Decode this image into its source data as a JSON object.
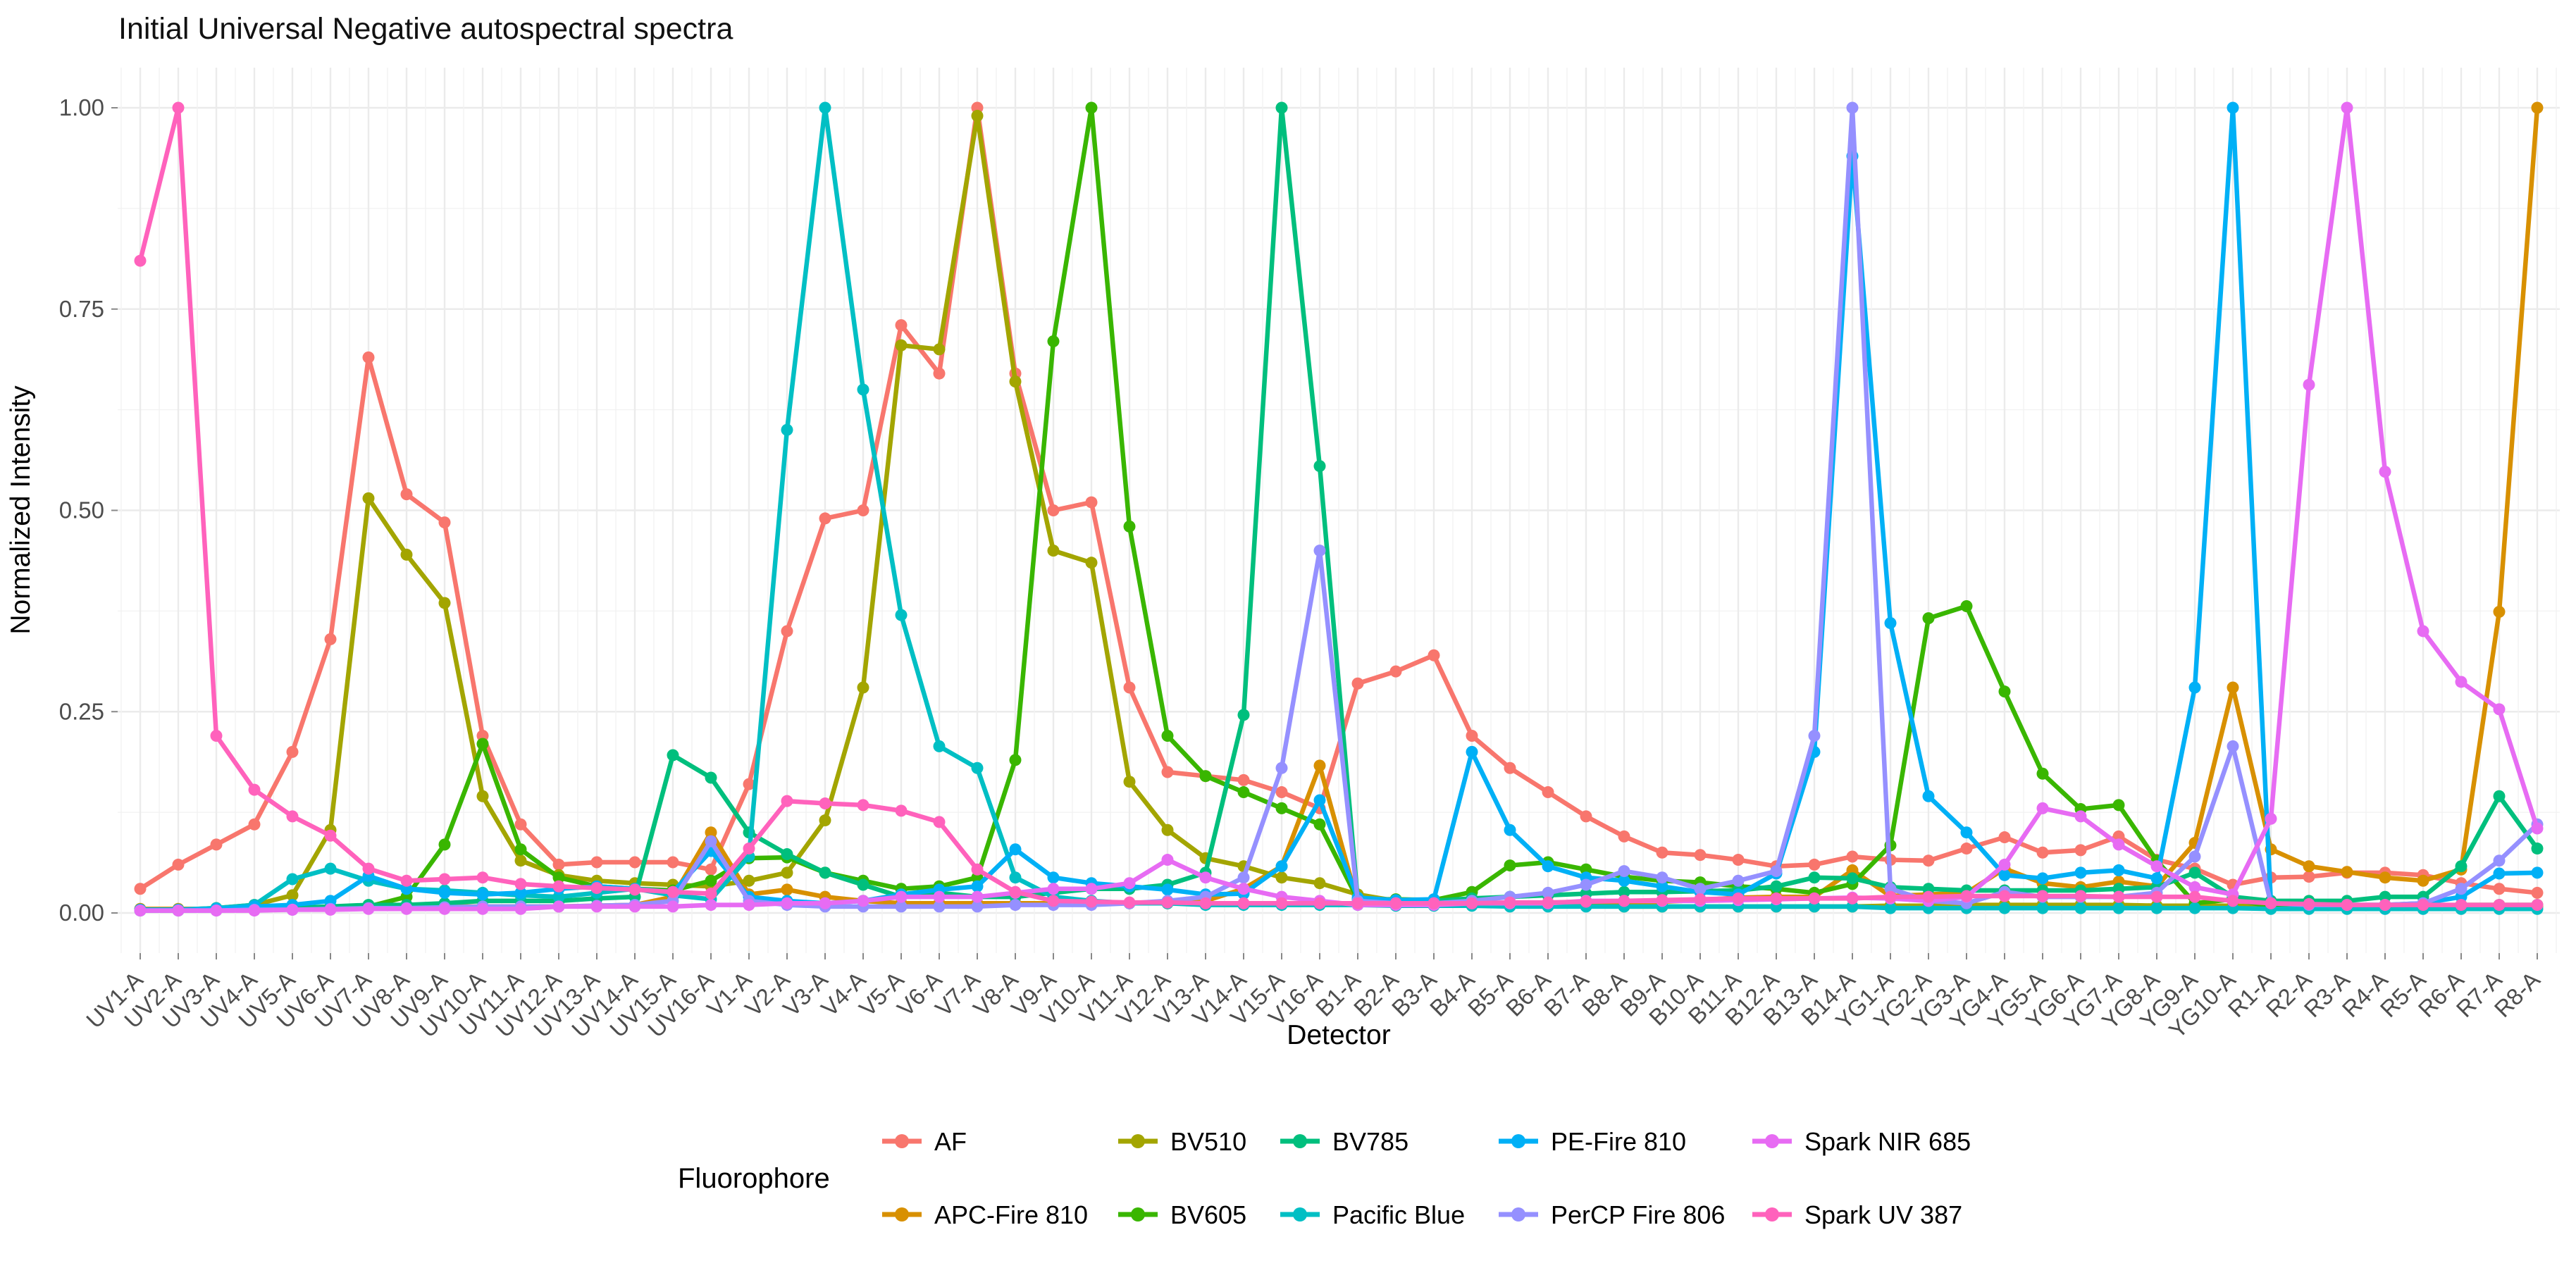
{
  "title": "Initial Universal Negative autospectral spectra",
  "y_axis": {
    "label": "Normalized Intensity",
    "ticks": [
      0,
      0.25,
      0.5,
      0.75,
      1.0
    ]
  },
  "x_axis": {
    "label": "Detector"
  },
  "legend": {
    "title": "Fluorophore",
    "rows": [
      [
        "AF",
        "BV510",
        "BV785",
        "PE-Fire 810",
        "Spark NIR 685"
      ],
      [
        "APC-Fire 810",
        "BV605",
        "Pacific Blue",
        "PerCP Fire 806",
        "Spark UV 387"
      ]
    ]
  },
  "chart_data": {
    "type": "line",
    "title": "Initial Universal Negative autospectral spectra",
    "xlabel": "Detector",
    "ylabel": "Normalized Intensity",
    "ylim": [
      0,
      1
    ],
    "grid": true,
    "legend_position": "bottom",
    "categories": [
      "UV1-A",
      "UV2-A",
      "UV3-A",
      "UV4-A",
      "UV5-A",
      "UV6-A",
      "UV7-A",
      "UV8-A",
      "UV9-A",
      "UV10-A",
      "UV11-A",
      "UV12-A",
      "UV13-A",
      "UV14-A",
      "UV15-A",
      "UV16-A",
      "V1-A",
      "V2-A",
      "V3-A",
      "V4-A",
      "V5-A",
      "V6-A",
      "V7-A",
      "V8-A",
      "V9-A",
      "V10-A",
      "V11-A",
      "V12-A",
      "V13-A",
      "V14-A",
      "V15-A",
      "V16-A",
      "B1-A",
      "B2-A",
      "B3-A",
      "B4-A",
      "B5-A",
      "B6-A",
      "B7-A",
      "B8-A",
      "B9-A",
      "B10-A",
      "B11-A",
      "B12-A",
      "B13-A",
      "B14-A",
      "YG1-A",
      "YG2-A",
      "YG3-A",
      "YG4-A",
      "YG5-A",
      "YG6-A",
      "YG7-A",
      "YG8-A",
      "YG9-A",
      "YG10-A",
      "R1-A",
      "R2-A",
      "R3-A",
      "R4-A",
      "R5-A",
      "R6-A",
      "R7-A",
      "R8-A"
    ],
    "series": [
      {
        "name": "AF",
        "color": "#F8766D",
        "values": [
          0.03,
          0.06,
          0.085,
          0.11,
          0.2,
          0.34,
          0.69,
          0.52,
          0.485,
          0.22,
          0.11,
          0.06,
          0.063,
          0.063,
          0.063,
          0.054,
          0.16,
          0.35,
          0.49,
          0.5,
          0.73,
          0.67,
          1.0,
          0.67,
          0.5,
          0.51,
          0.28,
          0.175,
          0.17,
          0.165,
          0.15,
          0.13,
          0.285,
          0.3,
          0.32,
          0.22,
          0.18,
          0.15,
          0.12,
          0.095,
          0.075,
          0.072,
          0.066,
          0.058,
          0.06,
          0.07,
          0.066,
          0.065,
          0.08,
          0.094,
          0.075,
          0.078,
          0.095,
          0.066,
          0.055,
          0.035,
          0.044,
          0.045,
          0.05,
          0.05,
          0.047,
          0.037,
          0.03,
          0.025
        ]
      },
      {
        "name": "APC-Fire 810",
        "color": "#D89000",
        "values": [
          0.005,
          0.005,
          0.005,
          0.005,
          0.006,
          0.006,
          0.007,
          0.007,
          0.008,
          0.008,
          0.008,
          0.008,
          0.009,
          0.01,
          0.02,
          0.1,
          0.023,
          0.029,
          0.02,
          0.015,
          0.012,
          0.012,
          0.012,
          0.012,
          0.012,
          0.012,
          0.012,
          0.012,
          0.015,
          0.03,
          0.058,
          0.183,
          0.012,
          0.01,
          0.01,
          0.01,
          0.01,
          0.01,
          0.012,
          0.012,
          0.014,
          0.016,
          0.019,
          0.02,
          0.02,
          0.053,
          0.021,
          0.023,
          0.025,
          0.055,
          0.037,
          0.032,
          0.039,
          0.033,
          0.087,
          0.28,
          0.079,
          0.058,
          0.051,
          0.044,
          0.04,
          0.054,
          0.374,
          1.0
        ]
      },
      {
        "name": "BV510",
        "color": "#A3A500",
        "values": [
          0.004,
          0.004,
          0.006,
          0.01,
          0.022,
          0.103,
          0.515,
          0.445,
          0.385,
          0.145,
          0.065,
          0.047,
          0.04,
          0.037,
          0.035,
          0.033,
          0.04,
          0.05,
          0.115,
          0.28,
          0.705,
          0.7,
          0.99,
          0.66,
          0.45,
          0.435,
          0.163,
          0.103,
          0.068,
          0.058,
          0.044,
          0.037,
          0.023,
          0.015,
          0.012,
          0.01,
          0.01,
          0.009,
          0.009,
          0.008,
          0.008,
          0.008,
          0.008,
          0.008,
          0.008,
          0.008,
          0.009,
          0.009,
          0.01,
          0.01,
          0.01,
          0.01,
          0.01,
          0.009,
          0.009,
          0.009,
          0.008,
          0.008,
          0.008,
          0.008,
          0.008,
          0.008,
          0.008,
          0.008
        ]
      },
      {
        "name": "BV605",
        "color": "#39B600",
        "values": [
          0.004,
          0.004,
          0.004,
          0.005,
          0.005,
          0.006,
          0.008,
          0.02,
          0.085,
          0.21,
          0.079,
          0.044,
          0.033,
          0.03,
          0.028,
          0.04,
          0.068,
          0.069,
          0.05,
          0.04,
          0.03,
          0.033,
          0.044,
          0.19,
          0.71,
          1.0,
          0.48,
          0.22,
          0.17,
          0.15,
          0.13,
          0.11,
          0.017,
          0.017,
          0.016,
          0.026,
          0.059,
          0.063,
          0.054,
          0.045,
          0.04,
          0.038,
          0.033,
          0.03,
          0.025,
          0.036,
          0.084,
          0.366,
          0.381,
          0.275,
          0.173,
          0.129,
          0.134,
          0.065,
          0.012,
          0.017,
          0.008,
          0.008,
          0.008,
          0.008,
          0.008,
          0.01,
          0.01,
          0.01
        ]
      },
      {
        "name": "BV785",
        "color": "#00BF7D",
        "values": [
          0.003,
          0.003,
          0.004,
          0.005,
          0.006,
          0.008,
          0.01,
          0.01,
          0.012,
          0.015,
          0.015,
          0.015,
          0.018,
          0.02,
          0.196,
          0.168,
          0.1,
          0.073,
          0.05,
          0.035,
          0.02,
          0.025,
          0.02,
          0.02,
          0.025,
          0.03,
          0.03,
          0.035,
          0.05,
          0.246,
          1.0,
          0.555,
          0.016,
          0.015,
          0.015,
          0.018,
          0.02,
          0.022,
          0.024,
          0.026,
          0.026,
          0.027,
          0.028,
          0.033,
          0.044,
          0.043,
          0.032,
          0.03,
          0.028,
          0.028,
          0.028,
          0.028,
          0.03,
          0.032,
          0.05,
          0.02,
          0.015,
          0.015,
          0.015,
          0.02,
          0.02,
          0.058,
          0.145,
          0.08
        ]
      },
      {
        "name": "Pacific Blue",
        "color": "#00BFC4",
        "values": [
          0.004,
          0.004,
          0.006,
          0.01,
          0.042,
          0.055,
          0.04,
          0.03,
          0.028,
          0.025,
          0.022,
          0.02,
          0.025,
          0.03,
          0.022,
          0.017,
          0.07,
          0.6,
          1.0,
          0.65,
          0.37,
          0.207,
          0.18,
          0.044,
          0.02,
          0.015,
          0.012,
          0.012,
          0.01,
          0.01,
          0.01,
          0.01,
          0.01,
          0.009,
          0.009,
          0.009,
          0.008,
          0.008,
          0.008,
          0.008,
          0.008,
          0.008,
          0.008,
          0.008,
          0.008,
          0.008,
          0.006,
          0.006,
          0.006,
          0.006,
          0.006,
          0.006,
          0.006,
          0.006,
          0.006,
          0.006,
          0.005,
          0.005,
          0.005,
          0.005,
          0.005,
          0.005,
          0.005,
          0.005
        ]
      },
      {
        "name": "PE-Fire 810",
        "color": "#00B0F6",
        "values": [
          0.004,
          0.004,
          0.005,
          0.008,
          0.01,
          0.015,
          0.046,
          0.03,
          0.025,
          0.023,
          0.025,
          0.03,
          0.033,
          0.03,
          0.026,
          0.077,
          0.02,
          0.015,
          0.012,
          0.015,
          0.023,
          0.029,
          0.033,
          0.079,
          0.044,
          0.037,
          0.033,
          0.029,
          0.023,
          0.024,
          0.058,
          0.14,
          0.019,
          0.016,
          0.017,
          0.2,
          0.103,
          0.058,
          0.044,
          0.04,
          0.033,
          0.026,
          0.023,
          0.049,
          0.2,
          0.94,
          0.36,
          0.145,
          0.1,
          0.047,
          0.043,
          0.05,
          0.053,
          0.043,
          0.28,
          1.0,
          0.012,
          0.01,
          0.01,
          0.01,
          0.012,
          0.02,
          0.049,
          0.05
        ]
      },
      {
        "name": "PerCP Fire 806",
        "color": "#9590FF",
        "values": [
          0.003,
          0.003,
          0.003,
          0.004,
          0.004,
          0.005,
          0.006,
          0.006,
          0.007,
          0.008,
          0.008,
          0.008,
          0.009,
          0.01,
          0.015,
          0.089,
          0.015,
          0.01,
          0.008,
          0.008,
          0.008,
          0.008,
          0.008,
          0.01,
          0.01,
          0.01,
          0.012,
          0.015,
          0.02,
          0.044,
          0.18,
          0.45,
          0.015,
          0.012,
          0.012,
          0.015,
          0.02,
          0.025,
          0.035,
          0.052,
          0.044,
          0.03,
          0.04,
          0.052,
          0.22,
          1.0,
          0.03,
          0.015,
          0.012,
          0.026,
          0.02,
          0.02,
          0.02,
          0.025,
          0.07,
          0.207,
          0.012,
          0.01,
          0.01,
          0.01,
          0.012,
          0.03,
          0.065,
          0.11
        ]
      },
      {
        "name": "Spark NIR 685",
        "color": "#E76BF3",
        "values": [
          0.003,
          0.003,
          0.003,
          0.003,
          0.004,
          0.004,
          0.005,
          0.005,
          0.005,
          0.005,
          0.005,
          0.008,
          0.008,
          0.008,
          0.008,
          0.01,
          0.01,
          0.012,
          0.012,
          0.015,
          0.02,
          0.02,
          0.02,
          0.025,
          0.03,
          0.03,
          0.037,
          0.066,
          0.044,
          0.03,
          0.02,
          0.015,
          0.01,
          0.01,
          0.01,
          0.012,
          0.012,
          0.012,
          0.015,
          0.015,
          0.015,
          0.015,
          0.016,
          0.017,
          0.018,
          0.019,
          0.018,
          0.015,
          0.02,
          0.06,
          0.13,
          0.12,
          0.085,
          0.058,
          0.032,
          0.023,
          0.117,
          0.656,
          1.0,
          0.548,
          0.35,
          0.287,
          0.253,
          0.105
        ]
      },
      {
        "name": "Spark UV 387",
        "color": "#FF62BC",
        "values": [
          0.81,
          1.0,
          0.22,
          0.153,
          0.12,
          0.096,
          0.055,
          0.04,
          0.042,
          0.044,
          0.036,
          0.033,
          0.031,
          0.029,
          0.026,
          0.024,
          0.08,
          0.139,
          0.136,
          0.134,
          0.127,
          0.113,
          0.054,
          0.026,
          0.015,
          0.014,
          0.013,
          0.013,
          0.012,
          0.012,
          0.012,
          0.012,
          0.012,
          0.012,
          0.012,
          0.012,
          0.013,
          0.013,
          0.014,
          0.015,
          0.016,
          0.017,
          0.018,
          0.018,
          0.018,
          0.018,
          0.02,
          0.02,
          0.021,
          0.021,
          0.021,
          0.021,
          0.02,
          0.02,
          0.02,
          0.015,
          0.012,
          0.011,
          0.01,
          0.01,
          0.01,
          0.01,
          0.01,
          0.01
        ]
      }
    ]
  }
}
